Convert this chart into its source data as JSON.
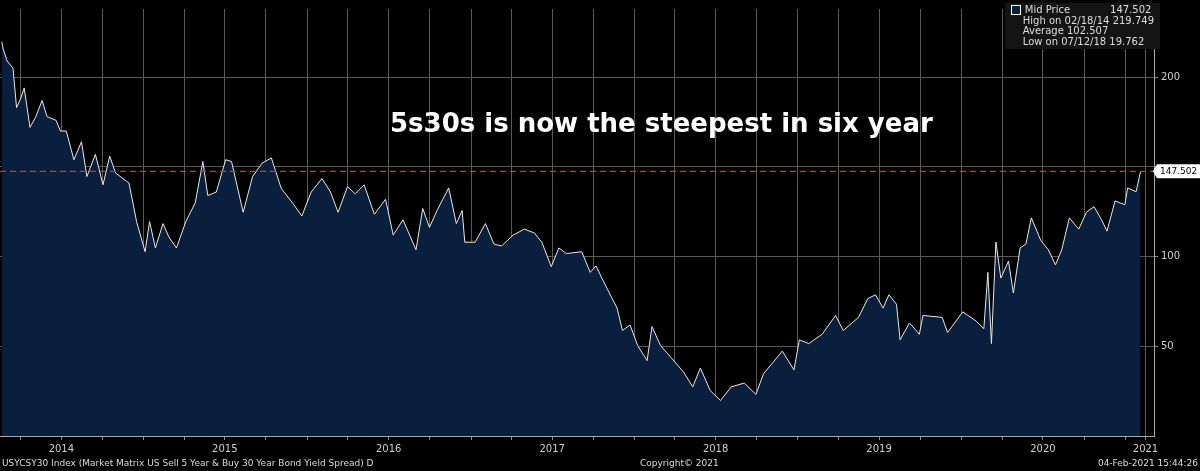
{
  "chart_data": {
    "type": "area",
    "title": "5s30s is now the steepest in six year",
    "x": [
      "2014-02-18",
      "2014-02-21",
      "2014-03-02",
      "2014-03-15",
      "2014-03-23",
      "2014-04-01",
      "2014-04-09",
      "2014-04-22",
      "2014-05-05",
      "2014-05-19",
      "2014-05-30",
      "2014-06-19",
      "2014-06-29",
      "2014-07-12",
      "2014-07-29",
      "2014-08-15",
      "2014-08-27",
      "2014-09-15",
      "2014-10-02",
      "2014-10-17",
      "2014-10-30",
      "2014-11-29",
      "2014-12-16",
      "2015-01-04",
      "2015-01-14",
      "2015-01-27",
      "2015-02-13",
      "2015-02-26",
      "2015-03-15",
      "2015-04-05",
      "2015-04-26",
      "2015-05-13",
      "2015-05-24",
      "2015-06-12",
      "2015-07-03",
      "2015-07-16",
      "2015-08-11",
      "2015-09-01",
      "2015-09-22",
      "2015-10-13",
      "2015-11-04",
      "2015-11-29",
      "2015-12-20",
      "2016-01-10",
      "2016-02-03",
      "2016-02-22",
      "2016-03-10",
      "2016-03-31",
      "2016-04-17",
      "2016-05-07",
      "2016-05-30",
      "2016-06-24",
      "2016-07-11",
      "2016-08-02",
      "2016-08-31",
      "2016-09-15",
      "2016-09-30",
      "2016-10-17",
      "2016-11-12",
      "2016-11-29",
      "2016-12-12",
      "2016-12-18",
      "2017-01-10",
      "2017-02-02",
      "2017-02-21",
      "2017-03-10",
      "2017-04-05",
      "2017-04-30",
      "2017-05-22",
      "2017-06-08",
      "2017-06-29",
      "2017-07-16",
      "2017-08-02",
      "2017-09-05",
      "2017-09-24",
      "2017-10-07",
      "2017-10-20",
      "2017-11-10",
      "2017-11-23",
      "2017-12-05",
      "2017-12-22",
      "2018-01-08",
      "2018-01-29",
      "2018-02-09",
      "2018-02-28",
      "2018-03-26",
      "2018-04-20",
      "2018-05-11",
      "2018-05-28",
      "2018-06-19",
      "2018-07-12",
      "2018-08-05",
      "2018-09-03",
      "2018-09-29",
      "2018-10-16",
      "2018-11-06",
      "2018-11-27",
      "2018-12-23",
      "2019-01-04",
      "2019-01-25",
      "2019-02-24",
      "2019-03-26",
      "2019-04-12",
      "2019-05-16",
      "2019-06-06",
      "2019-06-23",
      "2019-07-10",
      "2019-07-23",
      "2019-08-09",
      "2019-08-17",
      "2019-09-07",
      "2019-09-29",
      "2019-10-07",
      "2019-11-19",
      "2019-12-01",
      "2020-01-04",
      "2020-02-03",
      "2020-02-20",
      "2020-02-29",
      "2020-03-08",
      "2020-03-18",
      "2020-03-29",
      "2020-04-15",
      "2020-04-26",
      "2020-05-11",
      "2020-05-24",
      "2020-06-05",
      "2020-06-26",
      "2020-07-13",
      "2020-07-29",
      "2020-08-12",
      "2020-08-29",
      "2020-09-19",
      "2020-10-06",
      "2020-10-23",
      "2020-11-09",
      "2020-11-21",
      "2020-12-09",
      "2020-12-31",
      "2021-01-06",
      "2021-01-25",
      "2021-02-04"
    ],
    "series": [
      {
        "name": "Mid Price",
        "color": "#0a1f3d",
        "values": [
          219.7,
          215.7,
          209,
          205,
          183,
          188,
          194,
          172,
          178,
          187,
          178,
          176,
          170,
          170,
          154,
          164,
          144.6,
          157,
          140,
          156,
          146.6,
          141,
          119.5,
          102.7,
          119.5,
          104.8,
          118.4,
          111,
          104.8,
          119.5,
          130,
          153,
          134,
          136,
          154,
          153,
          124.7,
          144.6,
          152,
          155,
          138,
          130,
          122.6,
          136,
          143.5,
          136,
          124.7,
          139,
          135,
          140,
          123.6,
          132,
          112,
          120.5,
          103.8,
          126.8,
          116.3,
          125.7,
          138.3,
          118.4,
          125.7,
          108,
          108,
          118.4,
          107,
          105.9,
          112,
          115.3,
          113.2,
          108,
          94.4,
          104.8,
          101.7,
          102.7,
          91.2,
          94.8,
          88,
          77.6,
          71.3,
          58.8,
          61.9,
          50.4,
          42,
          61,
          50.4,
          43,
          35.8,
          27.4,
          37.9,
          25.3,
          19.8,
          27.4,
          29.5,
          23.2,
          34.7,
          41,
          47.3,
          36.8,
          53.6,
          51.5,
          56.7,
          67.2,
          58.8,
          66.1,
          76.6,
          78.7,
          71.3,
          78.7,
          73.4,
          53.6,
          63,
          56.7,
          67.2,
          66.1,
          57.7,
          69.2,
          64,
          59.8,
          91.2,
          51.5,
          108.1,
          88,
          97.5,
          79.7,
          104.8,
          107,
          121.6,
          109.1,
          103.8,
          95.4,
          103.8,
          121.6,
          115.3,
          124.7,
          127.8,
          120.5,
          114.2,
          131,
          128.9,
          138.3,
          136.2,
          147.5
        ]
      }
    ],
    "xlim": [
      "2014-02-14",
      "2021-03-06"
    ],
    "xticks": [
      {
        "value": "2014-04-01",
        "label": null
      },
      {
        "value": "2014-07-01",
        "label": "2014"
      },
      {
        "value": "2014-10-01",
        "label": null
      },
      {
        "value": "2015-01-01",
        "label": null
      },
      {
        "value": "2015-04-01",
        "label": null
      },
      {
        "value": "2015-07-01",
        "label": "2015"
      },
      {
        "value": "2015-10-01",
        "label": null
      },
      {
        "value": "2016-01-01",
        "label": null
      },
      {
        "value": "2016-04-01",
        "label": null
      },
      {
        "value": "2016-07-01",
        "label": "2016"
      },
      {
        "value": "2016-10-01",
        "label": null
      },
      {
        "value": "2017-01-01",
        "label": null
      },
      {
        "value": "2017-04-01",
        "label": null
      },
      {
        "value": "2017-07-01",
        "label": "2017"
      },
      {
        "value": "2017-10-01",
        "label": null
      },
      {
        "value": "2018-01-01",
        "label": null
      },
      {
        "value": "2018-04-01",
        "label": null
      },
      {
        "value": "2018-07-01",
        "label": "2018"
      },
      {
        "value": "2018-10-01",
        "label": null
      },
      {
        "value": "2019-01-01",
        "label": null
      },
      {
        "value": "2019-04-01",
        "label": null
      },
      {
        "value": "2019-07-01",
        "label": "2019"
      },
      {
        "value": "2019-10-01",
        "label": null
      },
      {
        "value": "2020-01-01",
        "label": null
      },
      {
        "value": "2020-04-01",
        "label": null
      },
      {
        "value": "2020-07-01",
        "label": "2020"
      },
      {
        "value": "2020-10-01",
        "label": null
      },
      {
        "value": "2021-01-01",
        "label": null
      },
      {
        "value": "2021-02-15",
        "label": "2021"
      }
    ],
    "ylim": [
      0,
      238
    ],
    "yticks": [
      50,
      100,
      {
        "value": 150,
        "label": null
      },
      200
    ],
    "grid": true,
    "legend": "top right",
    "ref_lines": [
      {
        "axis": "y",
        "value": 147.502,
        "label": "147.502",
        "color": "#ff2020",
        "line_style": "dashed"
      }
    ],
    "annotations": [
      "147.502",
      "High on 02/18/14 219.749",
      "Average 102.507",
      "Low on 07/12/18 19.762",
      "USYCSY30 Index (Market Matrix US Sell 5 Year & Buy 30 Year Bond Yield Spread)  D",
      "Copyright© 2021",
      "04-Feb-2021 15:44:26"
    ]
  }
}
